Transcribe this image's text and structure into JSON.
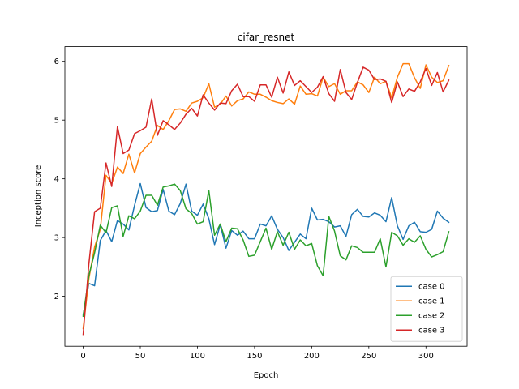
{
  "chart_data": {
    "type": "line",
    "title": "cifar_resnet",
    "xlabel": "Epoch",
    "ylabel": "Inception score",
    "xlim": [
      -16,
      336
    ],
    "ylim": [
      1.15,
      6.25
    ],
    "xticks": [
      0,
      50,
      100,
      150,
      200,
      250,
      300
    ],
    "yticks": [
      2,
      3,
      4,
      5,
      6
    ],
    "grid": false,
    "legend": "lower-right",
    "x": [
      0,
      5,
      10,
      15,
      20,
      25,
      30,
      35,
      40,
      45,
      50,
      55,
      60,
      65,
      70,
      75,
      80,
      85,
      90,
      95,
      100,
      105,
      110,
      115,
      120,
      125,
      130,
      135,
      140,
      145,
      150,
      155,
      160,
      165,
      170,
      175,
      180,
      185,
      190,
      195,
      200,
      205,
      210,
      215,
      220,
      225,
      230,
      235,
      240,
      245,
      250,
      255,
      260,
      265,
      270,
      275,
      280,
      285,
      290,
      295,
      300,
      305,
      310,
      315,
      320
    ],
    "series": [
      {
        "name": "case 0",
        "color": "#1f77b4",
        "values": [
          1.68,
          2.22,
          2.18,
          2.95,
          3.12,
          2.93,
          3.29,
          3.23,
          3.13,
          3.55,
          3.92,
          3.51,
          3.44,
          3.46,
          3.82,
          3.45,
          3.39,
          3.58,
          3.91,
          3.45,
          3.38,
          3.57,
          3.32,
          2.88,
          3.22,
          2.82,
          3.12,
          3.04,
          3.11,
          2.98,
          2.98,
          3.23,
          3.2,
          3.37,
          3.14,
          3.0,
          2.78,
          2.92,
          3.06,
          2.98,
          3.5,
          3.3,
          3.31,
          3.27,
          3.18,
          3.2,
          3.02,
          3.39,
          3.48,
          3.36,
          3.35,
          3.42,
          3.38,
          3.27,
          3.68,
          3.2,
          2.97,
          3.2,
          3.26,
          3.1,
          3.09,
          3.14,
          3.45,
          3.33,
          3.26
        ]
      },
      {
        "name": "case 1",
        "color": "#ff7f0e",
        "values": [
          1.45,
          2.3,
          2.84,
          3.14,
          4.06,
          3.92,
          4.2,
          4.09,
          4.42,
          4.1,
          4.43,
          4.54,
          4.64,
          4.91,
          4.84,
          4.99,
          5.18,
          5.19,
          5.15,
          5.29,
          5.32,
          5.38,
          5.62,
          5.22,
          5.27,
          5.41,
          5.24,
          5.33,
          5.36,
          5.48,
          5.44,
          5.44,
          5.39,
          5.33,
          5.3,
          5.28,
          5.36,
          5.27,
          5.58,
          5.44,
          5.45,
          5.41,
          5.73,
          5.57,
          5.62,
          5.44,
          5.5,
          5.5,
          5.65,
          5.6,
          5.47,
          5.73,
          5.62,
          5.66,
          5.38,
          5.73,
          5.96,
          5.96,
          5.72,
          5.54,
          5.94,
          5.73,
          5.64,
          5.67,
          5.93
        ]
      },
      {
        "name": "case 2",
        "color": "#2ca02c",
        "values": [
          1.66,
          2.35,
          2.74,
          3.21,
          3.08,
          3.51,
          3.54,
          3.02,
          3.37,
          3.32,
          3.45,
          3.72,
          3.72,
          3.55,
          3.86,
          3.88,
          3.91,
          3.8,
          3.49,
          3.41,
          3.23,
          3.27,
          3.8,
          3.04,
          3.23,
          2.93,
          3.16,
          3.15,
          2.96,
          2.68,
          2.7,
          2.93,
          3.16,
          2.8,
          3.1,
          2.87,
          3.09,
          2.8,
          2.96,
          2.86,
          2.9,
          2.52,
          2.35,
          3.36,
          3.11,
          2.69,
          2.62,
          2.86,
          2.83,
          2.75,
          2.75,
          2.75,
          2.98,
          2.5,
          3.09,
          3.03,
          2.87,
          2.98,
          2.92,
          3.03,
          2.8,
          2.67,
          2.71,
          2.76,
          3.1
        ]
      },
      {
        "name": "case 3",
        "color": "#d62728",
        "values": [
          1.35,
          2.55,
          3.44,
          3.5,
          4.27,
          3.87,
          4.89,
          4.43,
          4.49,
          4.77,
          4.82,
          4.88,
          5.36,
          4.74,
          4.99,
          4.92,
          4.84,
          4.95,
          5.1,
          5.2,
          5.07,
          5.43,
          5.29,
          5.17,
          5.29,
          5.28,
          5.5,
          5.61,
          5.4,
          5.4,
          5.32,
          5.6,
          5.6,
          5.39,
          5.73,
          5.46,
          5.82,
          5.59,
          5.67,
          5.57,
          5.47,
          5.56,
          5.74,
          5.45,
          5.32,
          5.86,
          5.47,
          5.35,
          5.64,
          5.9,
          5.85,
          5.69,
          5.7,
          5.66,
          5.3,
          5.65,
          5.4,
          5.53,
          5.49,
          5.65,
          5.88,
          5.59,
          5.81,
          5.48,
          5.68
        ]
      }
    ]
  }
}
